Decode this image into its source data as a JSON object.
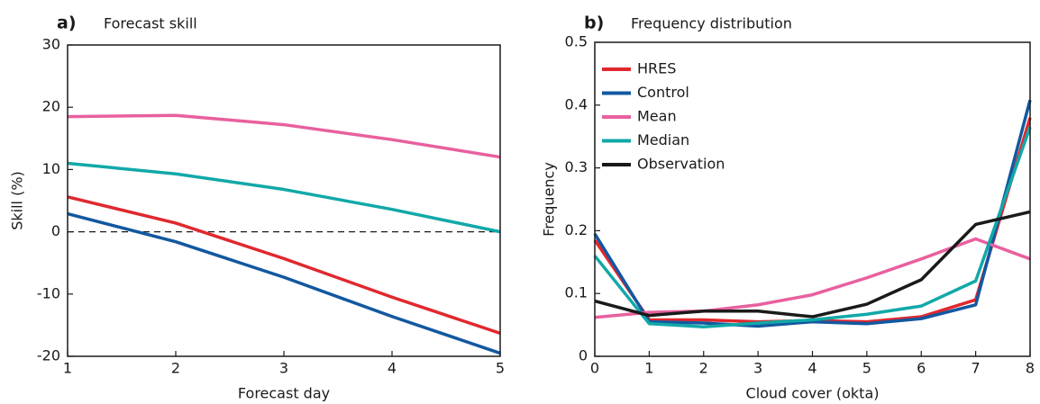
{
  "chart_data": [
    {
      "type": "line",
      "panel_label": "a)",
      "title": "Forecast skill",
      "x_label": "Forecast day",
      "y_label": "Skill (%)",
      "x": [
        1,
        2,
        3,
        4,
        5
      ],
      "xlim": [
        1,
        5
      ],
      "xticks": [
        1,
        2,
        3,
        4,
        5
      ],
      "ylim": [
        -20,
        30
      ],
      "yticks": [
        -20,
        -10,
        0,
        10,
        20,
        30
      ],
      "reference_line": 0,
      "series": [
        {
          "color": "#e8609e",
          "values": [
            18.5,
            18.7,
            17.2,
            14.8,
            12
          ]
        },
        {
          "color": "#12a8a8",
          "values": [
            11,
            9.3,
            6.8,
            3.6,
            0
          ]
        },
        {
          "color": "#e0282e",
          "values": [
            5.6,
            1.4,
            -4.3,
            -10.5,
            -16.3
          ]
        },
        {
          "color": "#1258a0",
          "values": [
            2.9,
            -1.6,
            -7.3,
            -13.6,
            -19.5
          ]
        }
      ]
    },
    {
      "type": "line",
      "panel_label": "b)",
      "title": "Frequency distribution",
      "x_label": "Cloud cover (okta)",
      "y_label": "Frequency",
      "x": [
        0,
        1,
        2,
        3,
        4,
        5,
        6,
        7,
        8
      ],
      "xlim": [
        0,
        8
      ],
      "xticks": [
        0,
        1,
        2,
        3,
        4,
        5,
        6,
        7,
        8
      ],
      "ylim": [
        0,
        0.5
      ],
      "yticks": [
        0,
        0.1,
        0.2,
        0.3,
        0.4,
        0.5
      ],
      "legend": "top-left",
      "series": [
        {
          "name": "HRES",
          "color": "#e0282e",
          "values": [
            0.185,
            0.058,
            0.058,
            0.055,
            0.057,
            0.055,
            0.063,
            0.09,
            0.38
          ]
        },
        {
          "name": "Control",
          "color": "#1258a0",
          "values": [
            0.195,
            0.055,
            0.053,
            0.048,
            0.055,
            0.052,
            0.06,
            0.082,
            0.408
          ]
        },
        {
          "name": "Mean",
          "color": "#e8609e",
          "values": [
            0.062,
            0.07,
            0.072,
            0.082,
            0.098,
            0.125,
            0.155,
            0.187,
            0.155
          ]
        },
        {
          "name": "Median",
          "color": "#12a8a8",
          "values": [
            0.16,
            0.052,
            0.047,
            0.053,
            0.058,
            0.067,
            0.08,
            0.12,
            0.365
          ]
        },
        {
          "name": "Observation",
          "color": "#1a1a1a",
          "values": [
            0.088,
            0.065,
            0.072,
            0.072,
            0.063,
            0.083,
            0.122,
            0.21,
            0.23
          ]
        }
      ]
    }
  ]
}
